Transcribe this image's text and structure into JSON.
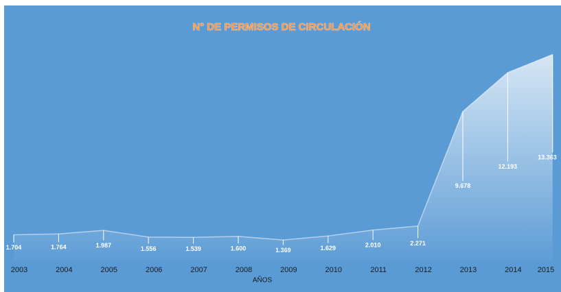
{
  "chart_data": {
    "type": "area",
    "title": "N° DE PERMISOS DE CIRCULACIÓN",
    "x_label": "AÑOS",
    "categories": [
      "2003",
      "2004",
      "2005",
      "2006",
      "2007",
      "2008",
      "2009",
      "2010",
      "2011",
      "2012",
      "2013",
      "2014",
      "2015"
    ],
    "values": [
      1704,
      1764,
      1987,
      1556,
      1539,
      1600,
      1369,
      1629,
      2010,
      2271,
      9678,
      12193,
      13363
    ],
    "value_labels": [
      "1.704",
      "1.764",
      "1.987",
      "1.556",
      "1.539",
      "1.600",
      "1.369",
      "1.629",
      "2.010",
      "2.271",
      "9.678",
      "12.193",
      "13.363"
    ],
    "color": "#ffffff",
    "ylim": [
      0,
      16000
    ]
  }
}
